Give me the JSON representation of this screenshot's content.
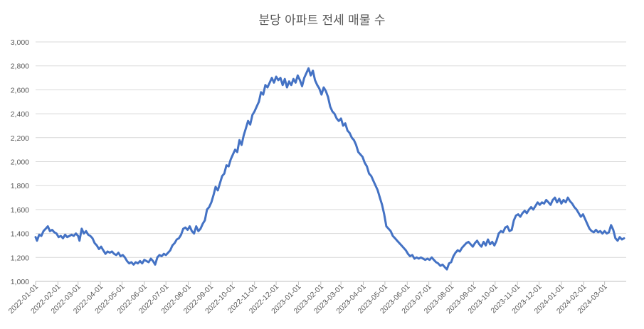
{
  "chart_data": {
    "type": "line",
    "title": "분당 아파트 전세 매물 수",
    "xlabel": "",
    "ylabel": "",
    "x_range": [
      "2022-01-01",
      "2024-03-31"
    ],
    "ylim": [
      1000,
      3000
    ],
    "yticks": [
      "1,000",
      "1,200",
      "1,400",
      "1,600",
      "1,800",
      "2,000",
      "2,200",
      "2,400",
      "2,600",
      "2,800",
      "3,000"
    ],
    "xticks": [
      "2022-01-01",
      "2022-02-01",
      "2022-03-01",
      "2022-04-01",
      "2022-05-01",
      "2022-06-01",
      "2022-07-01",
      "2022-08-01",
      "2022-09-01",
      "2022-10-01",
      "2022-11-01",
      "2022-12-01",
      "2023-01-01",
      "2023-02-01",
      "2023-03-01",
      "2023-04-01",
      "2023-05-01",
      "2023-06-01",
      "2023-07-01",
      "2023-08-01",
      "2023-09-01",
      "2023-10-01",
      "2023-11-01",
      "2023-12-01",
      "2024-01-01",
      "2024-02-01",
      "2024-03-01"
    ],
    "grid": "horizontal",
    "legend": "none",
    "series": [
      {
        "color": "#4472c4",
        "points": [
          [
            "2022-01-01",
            1370
          ],
          [
            "2022-01-03",
            1340
          ],
          [
            "2022-01-06",
            1390
          ],
          [
            "2022-01-09",
            1380
          ],
          [
            "2022-01-12",
            1420
          ],
          [
            "2022-01-15",
            1440
          ],
          [
            "2022-01-18",
            1460
          ],
          [
            "2022-01-21",
            1420
          ],
          [
            "2022-01-24",
            1430
          ],
          [
            "2022-01-27",
            1410
          ],
          [
            "2022-01-30",
            1400
          ],
          [
            "2022-02-02",
            1370
          ],
          [
            "2022-02-05",
            1380
          ],
          [
            "2022-02-08",
            1360
          ],
          [
            "2022-02-11",
            1390
          ],
          [
            "2022-02-14",
            1370
          ],
          [
            "2022-02-17",
            1380
          ],
          [
            "2022-02-20",
            1390
          ],
          [
            "2022-02-23",
            1380
          ],
          [
            "2022-02-26",
            1400
          ],
          [
            "2022-03-01",
            1380
          ],
          [
            "2022-03-03",
            1340
          ],
          [
            "2022-03-06",
            1440
          ],
          [
            "2022-03-09",
            1400
          ],
          [
            "2022-03-12",
            1420
          ],
          [
            "2022-03-15",
            1390
          ],
          [
            "2022-03-18",
            1380
          ],
          [
            "2022-03-21",
            1360
          ],
          [
            "2022-03-24",
            1320
          ],
          [
            "2022-03-27",
            1300
          ],
          [
            "2022-03-30",
            1270
          ],
          [
            "2022-04-02",
            1290
          ],
          [
            "2022-04-05",
            1260
          ],
          [
            "2022-04-08",
            1230
          ],
          [
            "2022-04-11",
            1250
          ],
          [
            "2022-04-14",
            1240
          ],
          [
            "2022-04-17",
            1250
          ],
          [
            "2022-04-20",
            1230
          ],
          [
            "2022-04-23",
            1220
          ],
          [
            "2022-04-26",
            1240
          ],
          [
            "2022-04-29",
            1210
          ],
          [
            "2022-05-02",
            1220
          ],
          [
            "2022-05-05",
            1200
          ],
          [
            "2022-05-08",
            1170
          ],
          [
            "2022-05-11",
            1150
          ],
          [
            "2022-05-14",
            1160
          ],
          [
            "2022-05-17",
            1140
          ],
          [
            "2022-05-20",
            1160
          ],
          [
            "2022-05-23",
            1150
          ],
          [
            "2022-05-26",
            1170
          ],
          [
            "2022-05-29",
            1150
          ],
          [
            "2022-06-01",
            1180
          ],
          [
            "2022-06-04",
            1170
          ],
          [
            "2022-06-07",
            1160
          ],
          [
            "2022-06-10",
            1190
          ],
          [
            "2022-06-13",
            1170
          ],
          [
            "2022-06-16",
            1140
          ],
          [
            "2022-06-19",
            1200
          ],
          [
            "2022-06-22",
            1220
          ],
          [
            "2022-06-25",
            1210
          ],
          [
            "2022-06-28",
            1230
          ],
          [
            "2022-07-01",
            1220
          ],
          [
            "2022-07-04",
            1240
          ],
          [
            "2022-07-07",
            1260
          ],
          [
            "2022-07-10",
            1300
          ],
          [
            "2022-07-13",
            1320
          ],
          [
            "2022-07-16",
            1350
          ],
          [
            "2022-07-19",
            1360
          ],
          [
            "2022-07-22",
            1390
          ],
          [
            "2022-07-25",
            1440
          ],
          [
            "2022-07-28",
            1450
          ],
          [
            "2022-07-31",
            1430
          ],
          [
            "2022-08-03",
            1460
          ],
          [
            "2022-08-06",
            1420
          ],
          [
            "2022-08-09",
            1400
          ],
          [
            "2022-08-12",
            1460
          ],
          [
            "2022-08-15",
            1420
          ],
          [
            "2022-08-18",
            1440
          ],
          [
            "2022-08-21",
            1480
          ],
          [
            "2022-08-24",
            1510
          ],
          [
            "2022-08-27",
            1600
          ],
          [
            "2022-08-30",
            1620
          ],
          [
            "2022-09-02",
            1660
          ],
          [
            "2022-09-05",
            1720
          ],
          [
            "2022-09-08",
            1790
          ],
          [
            "2022-09-11",
            1760
          ],
          [
            "2022-09-14",
            1820
          ],
          [
            "2022-09-17",
            1880
          ],
          [
            "2022-09-20",
            1900
          ],
          [
            "2022-09-23",
            1970
          ],
          [
            "2022-09-26",
            1960
          ],
          [
            "2022-09-29",
            2020
          ],
          [
            "2022-10-02",
            2060
          ],
          [
            "2022-10-05",
            2100
          ],
          [
            "2022-10-08",
            2080
          ],
          [
            "2022-10-11",
            2180
          ],
          [
            "2022-10-14",
            2140
          ],
          [
            "2022-10-17",
            2220
          ],
          [
            "2022-10-20",
            2280
          ],
          [
            "2022-10-23",
            2340
          ],
          [
            "2022-10-26",
            2310
          ],
          [
            "2022-10-29",
            2390
          ],
          [
            "2022-11-01",
            2420
          ],
          [
            "2022-11-04",
            2460
          ],
          [
            "2022-11-07",
            2500
          ],
          [
            "2022-11-10",
            2580
          ],
          [
            "2022-11-13",
            2560
          ],
          [
            "2022-11-16",
            2640
          ],
          [
            "2022-11-19",
            2620
          ],
          [
            "2022-11-22",
            2660
          ],
          [
            "2022-11-25",
            2700
          ],
          [
            "2022-11-28",
            2660
          ],
          [
            "2022-12-01",
            2710
          ],
          [
            "2022-12-04",
            2680
          ],
          [
            "2022-12-07",
            2700
          ],
          [
            "2022-12-10",
            2640
          ],
          [
            "2022-12-13",
            2690
          ],
          [
            "2022-12-16",
            2620
          ],
          [
            "2022-12-19",
            2670
          ],
          [
            "2022-12-22",
            2640
          ],
          [
            "2022-12-25",
            2690
          ],
          [
            "2022-12-28",
            2660
          ],
          [
            "2022-12-31",
            2720
          ],
          [
            "2023-01-03",
            2680
          ],
          [
            "2023-01-06",
            2630
          ],
          [
            "2023-01-09",
            2700
          ],
          [
            "2023-01-12",
            2740
          ],
          [
            "2023-01-15",
            2780
          ],
          [
            "2023-01-18",
            2720
          ],
          [
            "2023-01-21",
            2760
          ],
          [
            "2023-01-24",
            2680
          ],
          [
            "2023-01-27",
            2640
          ],
          [
            "2023-01-30",
            2610
          ],
          [
            "2023-02-02",
            2560
          ],
          [
            "2023-02-05",
            2620
          ],
          [
            "2023-02-08",
            2590
          ],
          [
            "2023-02-11",
            2540
          ],
          [
            "2023-02-14",
            2460
          ],
          [
            "2023-02-17",
            2420
          ],
          [
            "2023-02-20",
            2400
          ],
          [
            "2023-02-23",
            2360
          ],
          [
            "2023-02-26",
            2340
          ],
          [
            "2023-03-01",
            2360
          ],
          [
            "2023-03-04",
            2300
          ],
          [
            "2023-03-07",
            2320
          ],
          [
            "2023-03-10",
            2260
          ],
          [
            "2023-03-13",
            2240
          ],
          [
            "2023-03-16",
            2200
          ],
          [
            "2023-03-19",
            2180
          ],
          [
            "2023-03-22",
            2140
          ],
          [
            "2023-03-25",
            2080
          ],
          [
            "2023-03-28",
            2060
          ],
          [
            "2023-03-31",
            2040
          ],
          [
            "2023-04-03",
            1990
          ],
          [
            "2023-04-06",
            1960
          ],
          [
            "2023-04-09",
            1900
          ],
          [
            "2023-04-12",
            1880
          ],
          [
            "2023-04-15",
            1840
          ],
          [
            "2023-04-18",
            1800
          ],
          [
            "2023-04-21",
            1760
          ],
          [
            "2023-04-24",
            1700
          ],
          [
            "2023-04-27",
            1640
          ],
          [
            "2023-04-30",
            1560
          ],
          [
            "2023-05-03",
            1460
          ],
          [
            "2023-05-06",
            1440
          ],
          [
            "2023-05-09",
            1420
          ],
          [
            "2023-05-12",
            1380
          ],
          [
            "2023-05-15",
            1360
          ],
          [
            "2023-05-18",
            1340
          ],
          [
            "2023-05-21",
            1320
          ],
          [
            "2023-05-24",
            1300
          ],
          [
            "2023-05-27",
            1280
          ],
          [
            "2023-05-30",
            1260
          ],
          [
            "2023-06-02",
            1230
          ],
          [
            "2023-06-05",
            1210
          ],
          [
            "2023-06-08",
            1220
          ],
          [
            "2023-06-11",
            1190
          ],
          [
            "2023-06-14",
            1200
          ],
          [
            "2023-06-17",
            1190
          ],
          [
            "2023-06-20",
            1200
          ],
          [
            "2023-06-23",
            1190
          ],
          [
            "2023-06-26",
            1180
          ],
          [
            "2023-06-29",
            1190
          ],
          [
            "2023-07-02",
            1180
          ],
          [
            "2023-07-05",
            1200
          ],
          [
            "2023-07-08",
            1180
          ],
          [
            "2023-07-11",
            1160
          ],
          [
            "2023-07-14",
            1150
          ],
          [
            "2023-07-17",
            1130
          ],
          [
            "2023-07-20",
            1140
          ],
          [
            "2023-07-23",
            1120
          ],
          [
            "2023-07-26",
            1100
          ],
          [
            "2023-07-29",
            1150
          ],
          [
            "2023-08-01",
            1160
          ],
          [
            "2023-08-04",
            1210
          ],
          [
            "2023-08-07",
            1240
          ],
          [
            "2023-08-10",
            1260
          ],
          [
            "2023-08-13",
            1250
          ],
          [
            "2023-08-16",
            1280
          ],
          [
            "2023-08-19",
            1300
          ],
          [
            "2023-08-22",
            1320
          ],
          [
            "2023-08-25",
            1330
          ],
          [
            "2023-08-28",
            1310
          ],
          [
            "2023-08-31",
            1290
          ],
          [
            "2023-09-03",
            1320
          ],
          [
            "2023-09-06",
            1340
          ],
          [
            "2023-09-09",
            1310
          ],
          [
            "2023-09-12",
            1290
          ],
          [
            "2023-09-15",
            1330
          ],
          [
            "2023-09-18",
            1300
          ],
          [
            "2023-09-21",
            1350
          ],
          [
            "2023-09-24",
            1310
          ],
          [
            "2023-09-27",
            1330
          ],
          [
            "2023-09-30",
            1300
          ],
          [
            "2023-10-03",
            1340
          ],
          [
            "2023-10-06",
            1400
          ],
          [
            "2023-10-09",
            1420
          ],
          [
            "2023-10-12",
            1410
          ],
          [
            "2023-10-15",
            1450
          ],
          [
            "2023-10-18",
            1460
          ],
          [
            "2023-10-21",
            1420
          ],
          [
            "2023-10-24",
            1430
          ],
          [
            "2023-10-27",
            1510
          ],
          [
            "2023-10-30",
            1550
          ],
          [
            "2023-11-02",
            1560
          ],
          [
            "2023-11-05",
            1540
          ],
          [
            "2023-11-08",
            1570
          ],
          [
            "2023-11-11",
            1590
          ],
          [
            "2023-11-14",
            1570
          ],
          [
            "2023-11-17",
            1600
          ],
          [
            "2023-11-20",
            1620
          ],
          [
            "2023-11-23",
            1600
          ],
          [
            "2023-11-26",
            1630
          ],
          [
            "2023-11-29",
            1660
          ],
          [
            "2023-12-02",
            1640
          ],
          [
            "2023-12-05",
            1660
          ],
          [
            "2023-12-08",
            1650
          ],
          [
            "2023-12-11",
            1680
          ],
          [
            "2023-12-14",
            1660
          ],
          [
            "2023-12-17",
            1640
          ],
          [
            "2023-12-20",
            1680
          ],
          [
            "2023-12-23",
            1700
          ],
          [
            "2023-12-26",
            1660
          ],
          [
            "2023-12-29",
            1690
          ],
          [
            "2024-01-01",
            1650
          ],
          [
            "2024-01-04",
            1680
          ],
          [
            "2024-01-07",
            1660
          ],
          [
            "2024-01-10",
            1700
          ],
          [
            "2024-01-13",
            1670
          ],
          [
            "2024-01-16",
            1650
          ],
          [
            "2024-01-19",
            1620
          ],
          [
            "2024-01-22",
            1600
          ],
          [
            "2024-01-25",
            1570
          ],
          [
            "2024-01-28",
            1540
          ],
          [
            "2024-01-31",
            1560
          ],
          [
            "2024-02-03",
            1520
          ],
          [
            "2024-02-06",
            1480
          ],
          [
            "2024-02-09",
            1440
          ],
          [
            "2024-02-12",
            1420
          ],
          [
            "2024-02-15",
            1410
          ],
          [
            "2024-02-18",
            1430
          ],
          [
            "2024-02-21",
            1410
          ],
          [
            "2024-02-24",
            1420
          ],
          [
            "2024-02-27",
            1400
          ],
          [
            "2024-03-01",
            1420
          ],
          [
            "2024-03-04",
            1400
          ],
          [
            "2024-03-07",
            1410
          ],
          [
            "2024-03-10",
            1470
          ],
          [
            "2024-03-13",
            1430
          ],
          [
            "2024-03-16",
            1360
          ],
          [
            "2024-03-19",
            1340
          ],
          [
            "2024-03-22",
            1370
          ],
          [
            "2024-03-25",
            1350
          ],
          [
            "2024-03-28",
            1360
          ]
        ]
      }
    ]
  }
}
